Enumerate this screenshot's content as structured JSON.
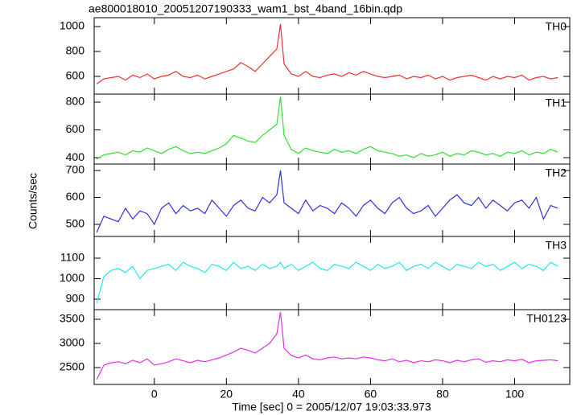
{
  "chart_data": {
    "type": "line",
    "title": "ae800018010_20051207190333_wam1_bst_4band_16bin.qdp",
    "x_label": "Time [sec] 0 = 2005/12/07 19:03:33.973",
    "y_label": "Counts/sec",
    "xlim": [
      -16.7,
      115.3
    ],
    "xticks": [
      0,
      20,
      40,
      60,
      80,
      100
    ],
    "x": [
      -16,
      -14,
      -12,
      -10,
      -8,
      -6,
      -4,
      -2,
      0,
      2,
      4,
      6,
      8,
      10,
      12,
      14,
      16,
      18,
      20,
      22,
      24,
      26,
      28,
      30,
      32,
      34,
      35,
      36,
      38,
      40,
      42,
      44,
      46,
      48,
      50,
      52,
      54,
      56,
      58,
      60,
      62,
      64,
      66,
      68,
      70,
      72,
      74,
      76,
      78,
      80,
      82,
      84,
      86,
      88,
      90,
      92,
      94,
      96,
      98,
      100,
      102,
      104,
      106,
      108,
      110,
      112
    ],
    "series": [
      {
        "name": "TH0",
        "color": "#f03030",
        "ylim": [
          458,
          1071
        ],
        "yticks": [
          600,
          800,
          1000
        ],
        "values": [
          540,
          580,
          590,
          600,
          570,
          610,
          590,
          620,
          580,
          600,
          610,
          640,
          600,
          590,
          610,
          580,
          600,
          620,
          640,
          660,
          710,
          680,
          640,
          700,
          760,
          820,
          1020,
          700,
          620,
          600,
          640,
          600,
          590,
          610,
          620,
          600,
          630,
          610,
          640,
          620,
          600,
          590,
          600,
          610,
          580,
          600,
          590,
          610,
          580,
          600,
          570,
          590,
          600,
          610,
          590,
          570,
          600,
          580,
          600,
          590,
          610,
          570,
          590,
          600,
          580,
          590
        ]
      },
      {
        "name": "TH1",
        "color": "#30e030",
        "ylim": [
          354,
          858
        ],
        "yticks": [
          400,
          600,
          800
        ],
        "values": [
          390,
          420,
          430,
          440,
          420,
          450,
          440,
          470,
          450,
          430,
          460,
          480,
          450,
          430,
          440,
          430,
          450,
          470,
          500,
          560,
          540,
          520,
          510,
          560,
          600,
          640,
          840,
          560,
          460,
          430,
          470,
          450,
          440,
          430,
          460,
          440,
          450,
          430,
          460,
          480,
          450,
          440,
          430,
          410,
          420,
          400,
          430,
          410,
          420,
          440,
          410,
          430,
          420,
          450,
          440,
          420,
          430,
          410,
          440,
          430,
          450,
          420,
          440,
          430,
          460,
          440
        ]
      },
      {
        "name": "TH2",
        "color": "#3030e0",
        "ylim": [
          455,
          724
        ],
        "yticks": [
          500,
          600,
          700
        ],
        "values": [
          470,
          530,
          520,
          510,
          560,
          520,
          550,
          540,
          500,
          560,
          580,
          540,
          570,
          550,
          560,
          540,
          590,
          560,
          530,
          570,
          590,
          560,
          550,
          600,
          580,
          610,
          700,
          580,
          560,
          540,
          590,
          550,
          570,
          560,
          540,
          580,
          560,
          530,
          570,
          590,
          560,
          540,
          580,
          600,
          560,
          540,
          550,
          570,
          530,
          560,
          590,
          610,
          580,
          570,
          600,
          560,
          590,
          570,
          550,
          580,
          590,
          560,
          600,
          520,
          570,
          560
        ]
      },
      {
        "name": "TH3",
        "color": "#20e8e8",
        "ylim": [
          849,
          1206
        ],
        "yticks": [
          900,
          1000,
          1100
        ],
        "values": [
          880,
          1010,
          1040,
          1050,
          1030,
          1060,
          1000,
          1040,
          1050,
          1060,
          1070,
          1040,
          1080,
          1060,
          1050,
          1030,
          1070,
          1060,
          1040,
          1080,
          1050,
          1060,
          1040,
          1070,
          1050,
          1060,
          1080,
          1050,
          1070,
          1040,
          1060,
          1080,
          1050,
          1040,
          1070,
          1060,
          1050,
          1080,
          1060,
          1040,
          1070,
          1050,
          1060,
          1080,
          1040,
          1060,
          1070,
          1050,
          1080,
          1060,
          1040,
          1070,
          1060,
          1050,
          1080,
          1060,
          1070,
          1040,
          1060,
          1080,
          1050,
          1070,
          1060,
          1040,
          1080,
          1060
        ]
      },
      {
        "name": "TH0123",
        "color": "#e030e0",
        "ylim": [
          2150,
          3700
        ],
        "yticks": [
          2500,
          3000,
          3500
        ],
        "values": [
          2250,
          2550,
          2600,
          2620,
          2580,
          2650,
          2600,
          2680,
          2550,
          2580,
          2620,
          2680,
          2640,
          2600,
          2650,
          2620,
          2660,
          2700,
          2760,
          2820,
          2900,
          2860,
          2800,
          2900,
          3000,
          3200,
          3650,
          2900,
          2750,
          2700,
          2760,
          2680,
          2660,
          2700,
          2720,
          2680,
          2700,
          2680,
          2720,
          2700,
          2660,
          2640,
          2680,
          2620,
          2650,
          2600,
          2640,
          2620,
          2660,
          2640,
          2600,
          2650,
          2620,
          2660,
          2680,
          2610,
          2640,
          2620,
          2660,
          2640,
          2670,
          2600,
          2640,
          2650,
          2660,
          2640
        ]
      }
    ]
  }
}
